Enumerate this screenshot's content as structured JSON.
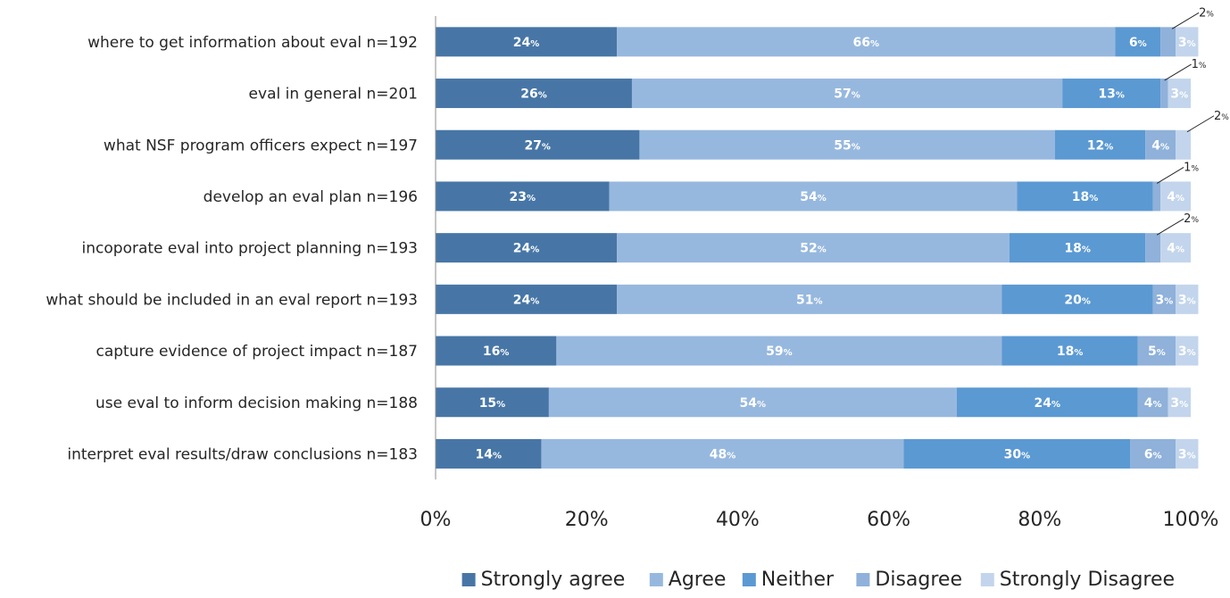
{
  "chart_data": {
    "type": "bar",
    "orientation": "horizontal",
    "stacked": true,
    "categories": [
      "where to get information about eval n=192",
      "eval in general n=201",
      "what NSF program officers expect n=197",
      "develop an eval plan n=196",
      "incoporate eval into project planning n=193",
      "what should be included in an eval report n=193",
      "capture evidence of project impact n=187",
      "use eval to inform decision making n=188",
      "interpret eval results/draw conclusions n=183"
    ],
    "series": [
      {
        "name": "Strongly agree",
        "color": "#4776a6",
        "values": [
          24,
          26,
          27,
          23,
          24,
          24,
          16,
          15,
          14
        ]
      },
      {
        "name": "Agree",
        "color": "#97b8de",
        "values": [
          66,
          57,
          55,
          54,
          52,
          51,
          59,
          54,
          48
        ]
      },
      {
        "name": "Neither",
        "color": "#5b99d3",
        "values": [
          6,
          13,
          12,
          18,
          18,
          20,
          18,
          24,
          30
        ]
      },
      {
        "name": "Disagree",
        "color": "#8fb1da",
        "values": [
          2,
          1,
          4,
          1,
          2,
          3,
          5,
          4,
          6
        ]
      },
      {
        "name": "Strongly Disagree",
        "color": "#c3d5ec",
        "values": [
          3,
          3,
          2,
          4,
          4,
          3,
          3,
          3,
          3
        ]
      }
    ],
    "callouts": [
      {
        "category_index": 0,
        "series_index": 3,
        "value": 2
      },
      {
        "category_index": 1,
        "series_index": 3,
        "value": 1
      },
      {
        "category_index": 2,
        "series_index": 4,
        "value": 2
      },
      {
        "category_index": 3,
        "series_index": 3,
        "value": 1
      },
      {
        "category_index": 4,
        "series_index": 3,
        "value": 2
      }
    ],
    "x_ticks": [
      "0%",
      "20%",
      "40%",
      "60%",
      "80%",
      "100%"
    ],
    "xlim": [
      0,
      100
    ],
    "value_suffix": "%",
    "grid": false,
    "legend_position": "bottom"
  }
}
